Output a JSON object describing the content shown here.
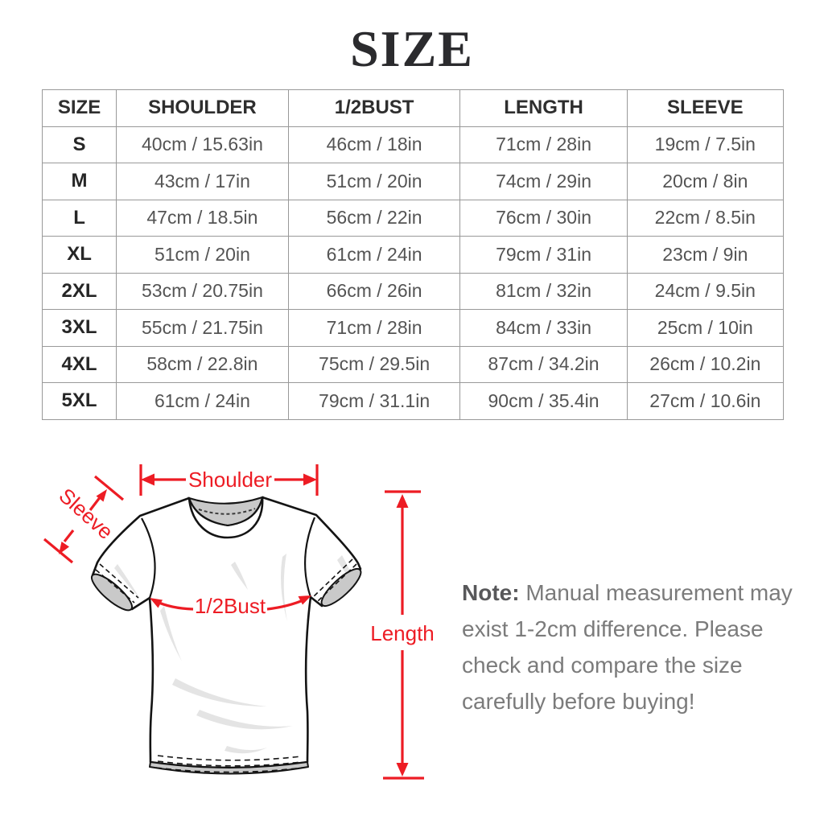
{
  "title": "SIZE",
  "table": {
    "headers": [
      "SIZE",
      "SHOULDER",
      "1/2BUST",
      "LENGTH",
      "SLEEVE"
    ],
    "rows": [
      [
        "S",
        "40cm / 15.63in",
        "46cm / 18in",
        "71cm / 28in",
        "19cm / 7.5in"
      ],
      [
        "M",
        "43cm / 17in",
        "51cm / 20in",
        "74cm / 29in",
        "20cm / 8in"
      ],
      [
        "L",
        "47cm / 18.5in",
        "56cm / 22in",
        "76cm / 30in",
        "22cm / 8.5in"
      ],
      [
        "XL",
        "51cm / 20in",
        "61cm / 24in",
        "79cm / 31in",
        "23cm / 9in"
      ],
      [
        "2XL",
        "53cm / 20.75in",
        "66cm / 26in",
        "81cm / 32in",
        "24cm / 9.5in"
      ],
      [
        "3XL",
        "55cm / 21.75in",
        "71cm / 28in",
        "84cm / 33in",
        "25cm / 10in"
      ],
      [
        "4XL",
        "58cm / 22.8in",
        "75cm / 29.5in",
        "87cm / 34.2in",
        "26cm / 10.2in"
      ],
      [
        "5XL",
        "61cm / 24in",
        "79cm / 31.1in",
        "90cm / 35.4in",
        "27cm / 10.6in"
      ]
    ]
  },
  "diagram": {
    "labels": {
      "shoulder": "Shoulder",
      "sleeve": "Sleeve",
      "bust": "1/2Bust",
      "length": "Length"
    },
    "colors": {
      "annotation_red": "#ED1C24",
      "outline_black": "#141414",
      "fabric_gray": "#c9c9c9"
    }
  },
  "note": {
    "label": "Note:",
    "text": "Manual measurement may exist 1-2cm difference. Please check and compare the size carefully before buying!"
  }
}
